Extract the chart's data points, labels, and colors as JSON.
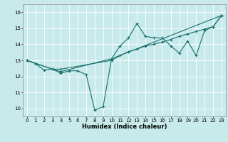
{
  "xlabel": "Humidex (Indice chaleur)",
  "xlim": [
    -0.5,
    23.5
  ],
  "ylim": [
    9.5,
    16.5
  ],
  "xticks": [
    0,
    1,
    2,
    3,
    4,
    5,
    6,
    7,
    8,
    9,
    10,
    11,
    12,
    13,
    14,
    15,
    16,
    17,
    18,
    19,
    20,
    21,
    22,
    23
  ],
  "yticks": [
    10,
    11,
    12,
    13,
    14,
    15,
    16
  ],
  "bg_color": "#c8eaea",
  "line_color": "#1a7070",
  "grid_color": "#ffffff",
  "lines": [
    {
      "x": [
        0,
        1,
        2,
        3,
        4,
        5,
        6,
        7,
        8,
        9,
        10,
        11,
        12,
        13,
        14,
        15,
        16,
        17,
        18,
        19,
        20,
        21,
        22,
        23
      ],
      "y": [
        13.0,
        12.8,
        12.4,
        12.45,
        12.2,
        12.35,
        12.35,
        12.1,
        9.9,
        10.1,
        13.1,
        13.9,
        14.4,
        15.3,
        14.5,
        14.4,
        14.4,
        13.9,
        13.45,
        14.2,
        13.3,
        14.85,
        15.1,
        15.8
      ]
    },
    {
      "x": [
        0,
        3,
        4,
        10,
        11,
        12,
        13,
        14,
        15,
        16,
        17,
        18,
        19,
        20,
        21,
        22,
        23
      ],
      "y": [
        13.0,
        12.45,
        12.45,
        13.0,
        13.3,
        13.55,
        13.7,
        13.9,
        14.0,
        14.15,
        14.3,
        14.5,
        14.65,
        14.8,
        14.95,
        15.1,
        15.8
      ]
    },
    {
      "x": [
        0,
        3,
        4,
        10,
        23
      ],
      "y": [
        13.0,
        12.45,
        12.3,
        13.1,
        15.8
      ]
    }
  ],
  "marker": "+",
  "markersize": 3,
  "linewidth": 0.8,
  "xlabel_fontsize": 6,
  "tick_fontsize": 5
}
